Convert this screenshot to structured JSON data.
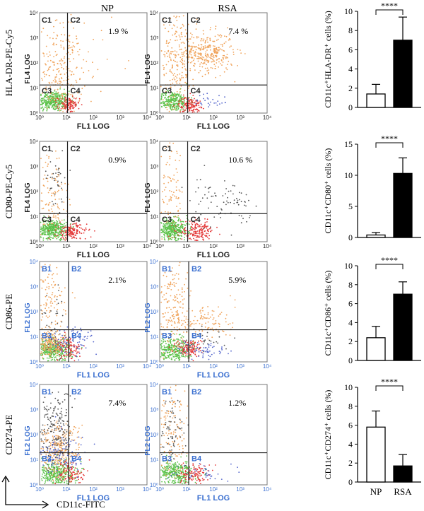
{
  "figure": {
    "column_titles": [
      "NP",
      "RSA"
    ],
    "corner_axes": {
      "x_label": "CD11c-FITC",
      "y_label": "CD274-PE"
    },
    "rows": [
      {
        "marker_label": "HLA-DR-PE-Cy5",
        "y_axis_label": "FL4 LOG",
        "x_axis_label": "FL1 LOG",
        "axis_label_color": "#222222",
        "quadrants": [
          "C1",
          "C2",
          "C3",
          "C4"
        ],
        "np_percent": "1.9 %",
        "rsa_percent": "7.4 %"
      },
      {
        "marker_label": "CD80-PE-Cy5",
        "y_axis_label": "FL4 LOG",
        "x_axis_label": "FL1 LOG",
        "axis_label_color": "#222222",
        "quadrants": [
          "C1",
          "C2",
          "C3",
          "C4"
        ],
        "np_percent": "0.9%",
        "rsa_percent": "10.6 %"
      },
      {
        "marker_label": "CD86-PE",
        "y_axis_label": "FL2 LOG",
        "x_axis_label": "FL1 LOG",
        "axis_label_color": "#3a6fd0",
        "quadrants": [
          "B1",
          "B2",
          "B3",
          "B4"
        ],
        "np_percent": "2.1%",
        "rsa_percent": "5.9%"
      },
      {
        "marker_label": "CD274-PE",
        "y_axis_label": "FL2 LOG",
        "x_axis_label": "FL1 LOG",
        "axis_label_color": "#3a6fd0",
        "quadrants": [
          "B1",
          "B2",
          "B3",
          "B4"
        ],
        "np_percent": "7.4%",
        "rsa_percent": "1.2%"
      }
    ],
    "tick_labels": [
      "10⁰",
      "10¹",
      "10²",
      "10³",
      "10⁴"
    ]
  },
  "chart_data": [
    {
      "type": "bar",
      "ylabel": "CD11c⁺HLA-DR⁺ cells (%)",
      "categories": [
        "NP",
        "RSA"
      ],
      "values": [
        1.4,
        7.0
      ],
      "errors": [
        1.0,
        2.4
      ],
      "ylim": [
        0,
        10
      ],
      "yticks": [
        0,
        2,
        4,
        6,
        8,
        10
      ],
      "significance": "****",
      "bar_colors": [
        "#ffffff",
        "#000000"
      ]
    },
    {
      "type": "bar",
      "ylabel": "CD11c⁺CD80⁺ cells (%)",
      "categories": [
        "NP",
        "RSA"
      ],
      "values": [
        0.4,
        10.3
      ],
      "errors": [
        0.4,
        2.5
      ],
      "ylim": [
        0,
        15
      ],
      "yticks": [
        0,
        5,
        10,
        15
      ],
      "significance": "****",
      "bar_colors": [
        "#ffffff",
        "#000000"
      ]
    },
    {
      "type": "bar",
      "ylabel": "CD11c⁺CD86⁺ cells (%)",
      "categories": [
        "NP",
        "RSA"
      ],
      "values": [
        2.4,
        7.0
      ],
      "errors": [
        1.2,
        1.3
      ],
      "ylim": [
        0,
        10
      ],
      "yticks": [
        0,
        2,
        4,
        6,
        8,
        10
      ],
      "significance": "****",
      "bar_colors": [
        "#ffffff",
        "#000000"
      ]
    },
    {
      "type": "bar",
      "ylabel": "CD11c⁺CD274⁺ cells (%)",
      "categories": [
        "NP",
        "RSA"
      ],
      "values": [
        5.8,
        1.7
      ],
      "errors": [
        1.7,
        1.2
      ],
      "ylim": [
        0,
        10
      ],
      "yticks": [
        0,
        2,
        4,
        6,
        8,
        10
      ],
      "significance": "****",
      "bar_colors": [
        "#ffffff",
        "#000000"
      ]
    }
  ],
  "colors": {
    "green": "#5cc24a",
    "orange": "#f0a35a",
    "red": "#e43a3a",
    "gray": "#555555",
    "blue": "#5566cc"
  }
}
